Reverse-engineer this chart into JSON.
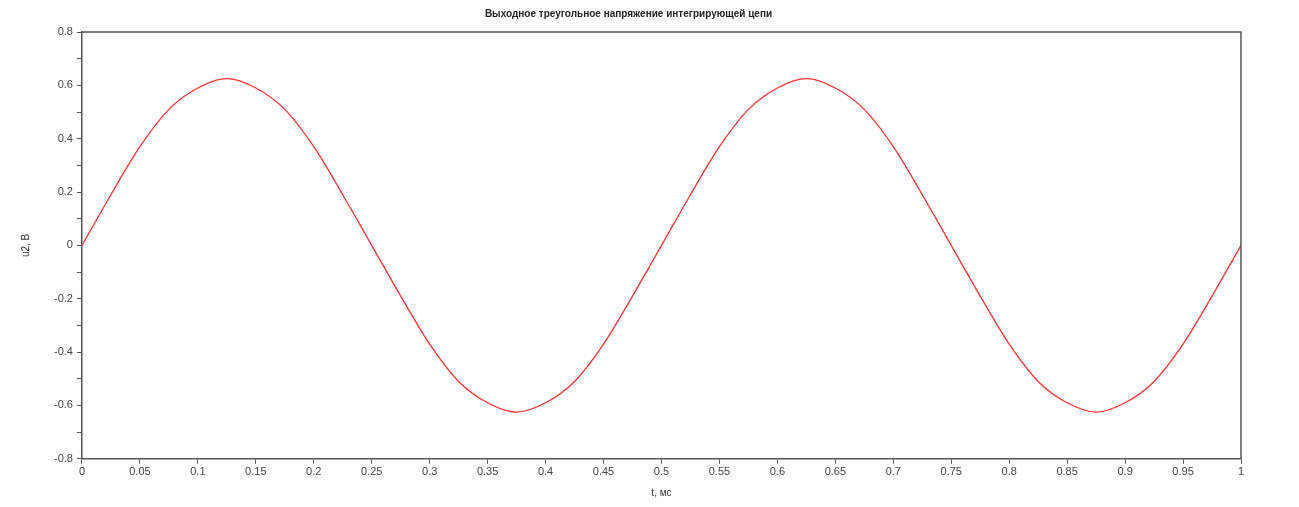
{
  "chart_data": {
    "type": "line",
    "title": "Выходное треугольное напряжение интегрирующей цепи",
    "xlabel": "t, мс",
    "ylabel": "u2, В",
    "x": [
      0,
      0.025,
      0.05,
      0.075,
      0.1,
      0.125,
      0.15,
      0.175,
      0.2,
      0.225,
      0.25,
      0.275,
      0.3,
      0.325,
      0.35,
      0.375,
      0.4,
      0.425,
      0.45,
      0.475,
      0.5,
      0.525,
      0.55,
      0.575,
      0.6,
      0.625,
      0.65,
      0.675,
      0.7,
      0.725,
      0.75,
      0.775,
      0.8,
      0.825,
      0.85,
      0.875,
      0.9,
      0.925,
      0.95,
      0.975,
      1
    ],
    "series": [
      {
        "color": "#ff3333",
        "values": [
          0,
          0.19,
          0.37,
          0.51,
          0.59,
          0.625,
          0.59,
          0.51,
          0.37,
          0.19,
          0,
          -0.19,
          -0.37,
          -0.51,
          -0.59,
          -0.625,
          -0.59,
          -0.51,
          -0.37,
          -0.19,
          0,
          0.19,
          0.37,
          0.51,
          0.59,
          0.625,
          0.59,
          0.51,
          0.37,
          0.19,
          0,
          -0.19,
          -0.37,
          -0.51,
          -0.59,
          -0.625,
          -0.59,
          -0.51,
          -0.37,
          -0.19,
          0
        ]
      }
    ],
    "xlim": [
      0,
      1
    ],
    "xticks": [
      0,
      0.05,
      0.1,
      0.15,
      0.2,
      0.25,
      0.3,
      0.35,
      0.4,
      0.45,
      0.5,
      0.55,
      0.6,
      0.65,
      0.7,
      0.75,
      0.8,
      0.85,
      0.9,
      0.95,
      1
    ],
    "ylim": [
      -0.8,
      0.8
    ],
    "yticks": [
      -0.8,
      {
        "value": -0.7,
        "label": null
      },
      -0.6,
      {
        "value": -0.5,
        "label": null
      },
      -0.4,
      {
        "value": -0.3,
        "label": null
      },
      -0.2,
      {
        "value": -0.1,
        "label": null
      },
      0,
      {
        "value": 0.1,
        "label": null
      },
      0.2,
      {
        "value": 0.3,
        "label": null
      },
      0.4,
      {
        "value": 0.5,
        "label": null
      },
      0.6,
      {
        "value": 0.7,
        "label": null
      },
      0.8
    ],
    "legend": false,
    "marker": "none",
    "line_style": "solid"
  }
}
